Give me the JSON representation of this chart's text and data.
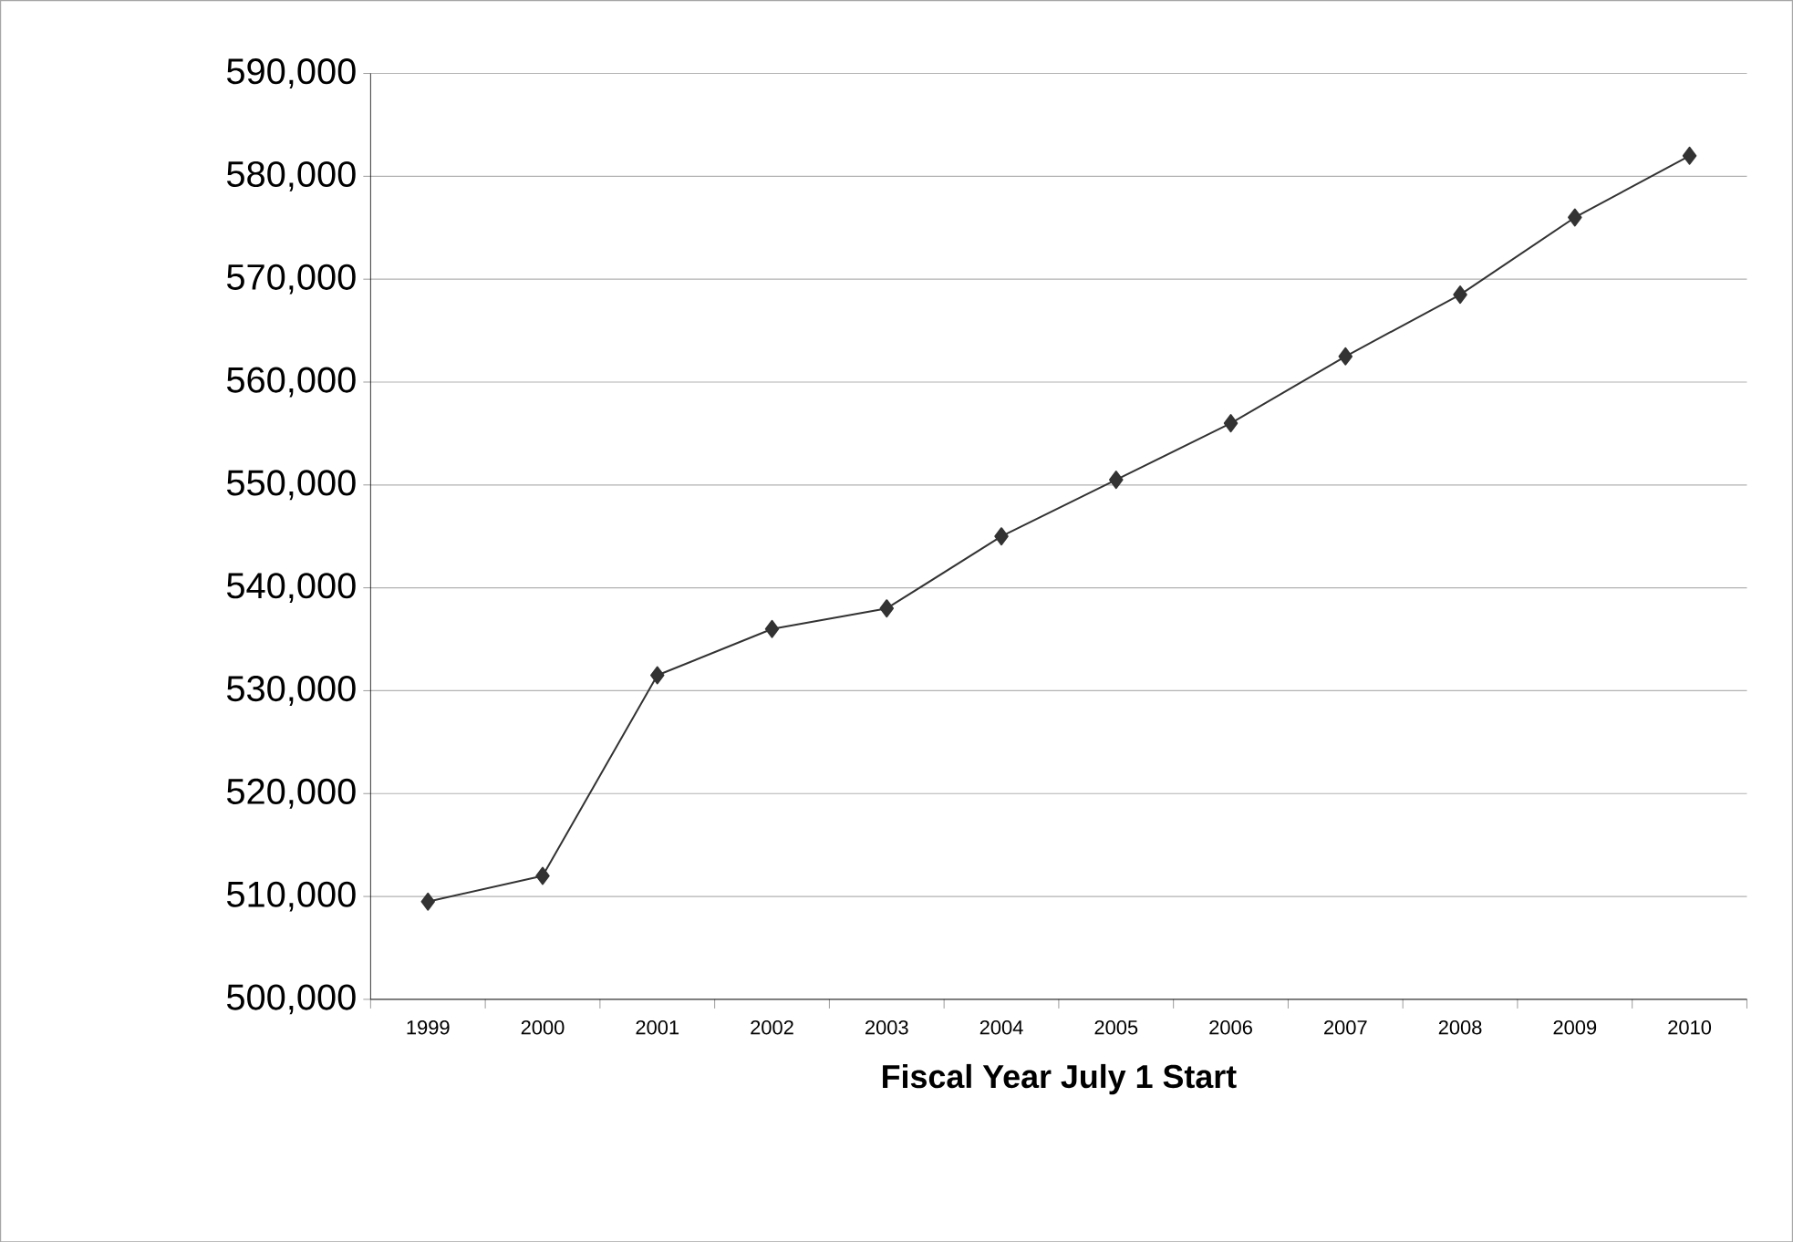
{
  "chart_data": {
    "type": "line",
    "xlabel": "Fiscal Year July 1 Start",
    "categories": [
      "1999",
      "2000",
      "2001",
      "2002",
      "2003",
      "2004",
      "2005",
      "2006",
      "2007",
      "2008",
      "2009",
      "2010"
    ],
    "values": [
      509500,
      512000,
      531500,
      536000,
      538000,
      545000,
      550500,
      556000,
      562500,
      568500,
      576000,
      582000
    ],
    "color": "#333333",
    "marker": "diamond",
    "line_style": "solid",
    "grid": "y",
    "ylim": [
      500000,
      590000
    ],
    "yticks": [
      {
        "value": 500000,
        "label": "500,000"
      },
      {
        "value": 510000,
        "label": "510,000"
      },
      {
        "value": 520000,
        "label": "520,000"
      },
      {
        "value": 530000,
        "label": "530,000"
      },
      {
        "value": 540000,
        "label": "540,000"
      },
      {
        "value": 550000,
        "label": "550,000"
      },
      {
        "value": 560000,
        "label": "560,000"
      },
      {
        "value": 570000,
        "label": "570,000"
      },
      {
        "value": 580000,
        "label": "580,000"
      },
      {
        "value": 590000,
        "label": "590,000"
      }
    ]
  }
}
